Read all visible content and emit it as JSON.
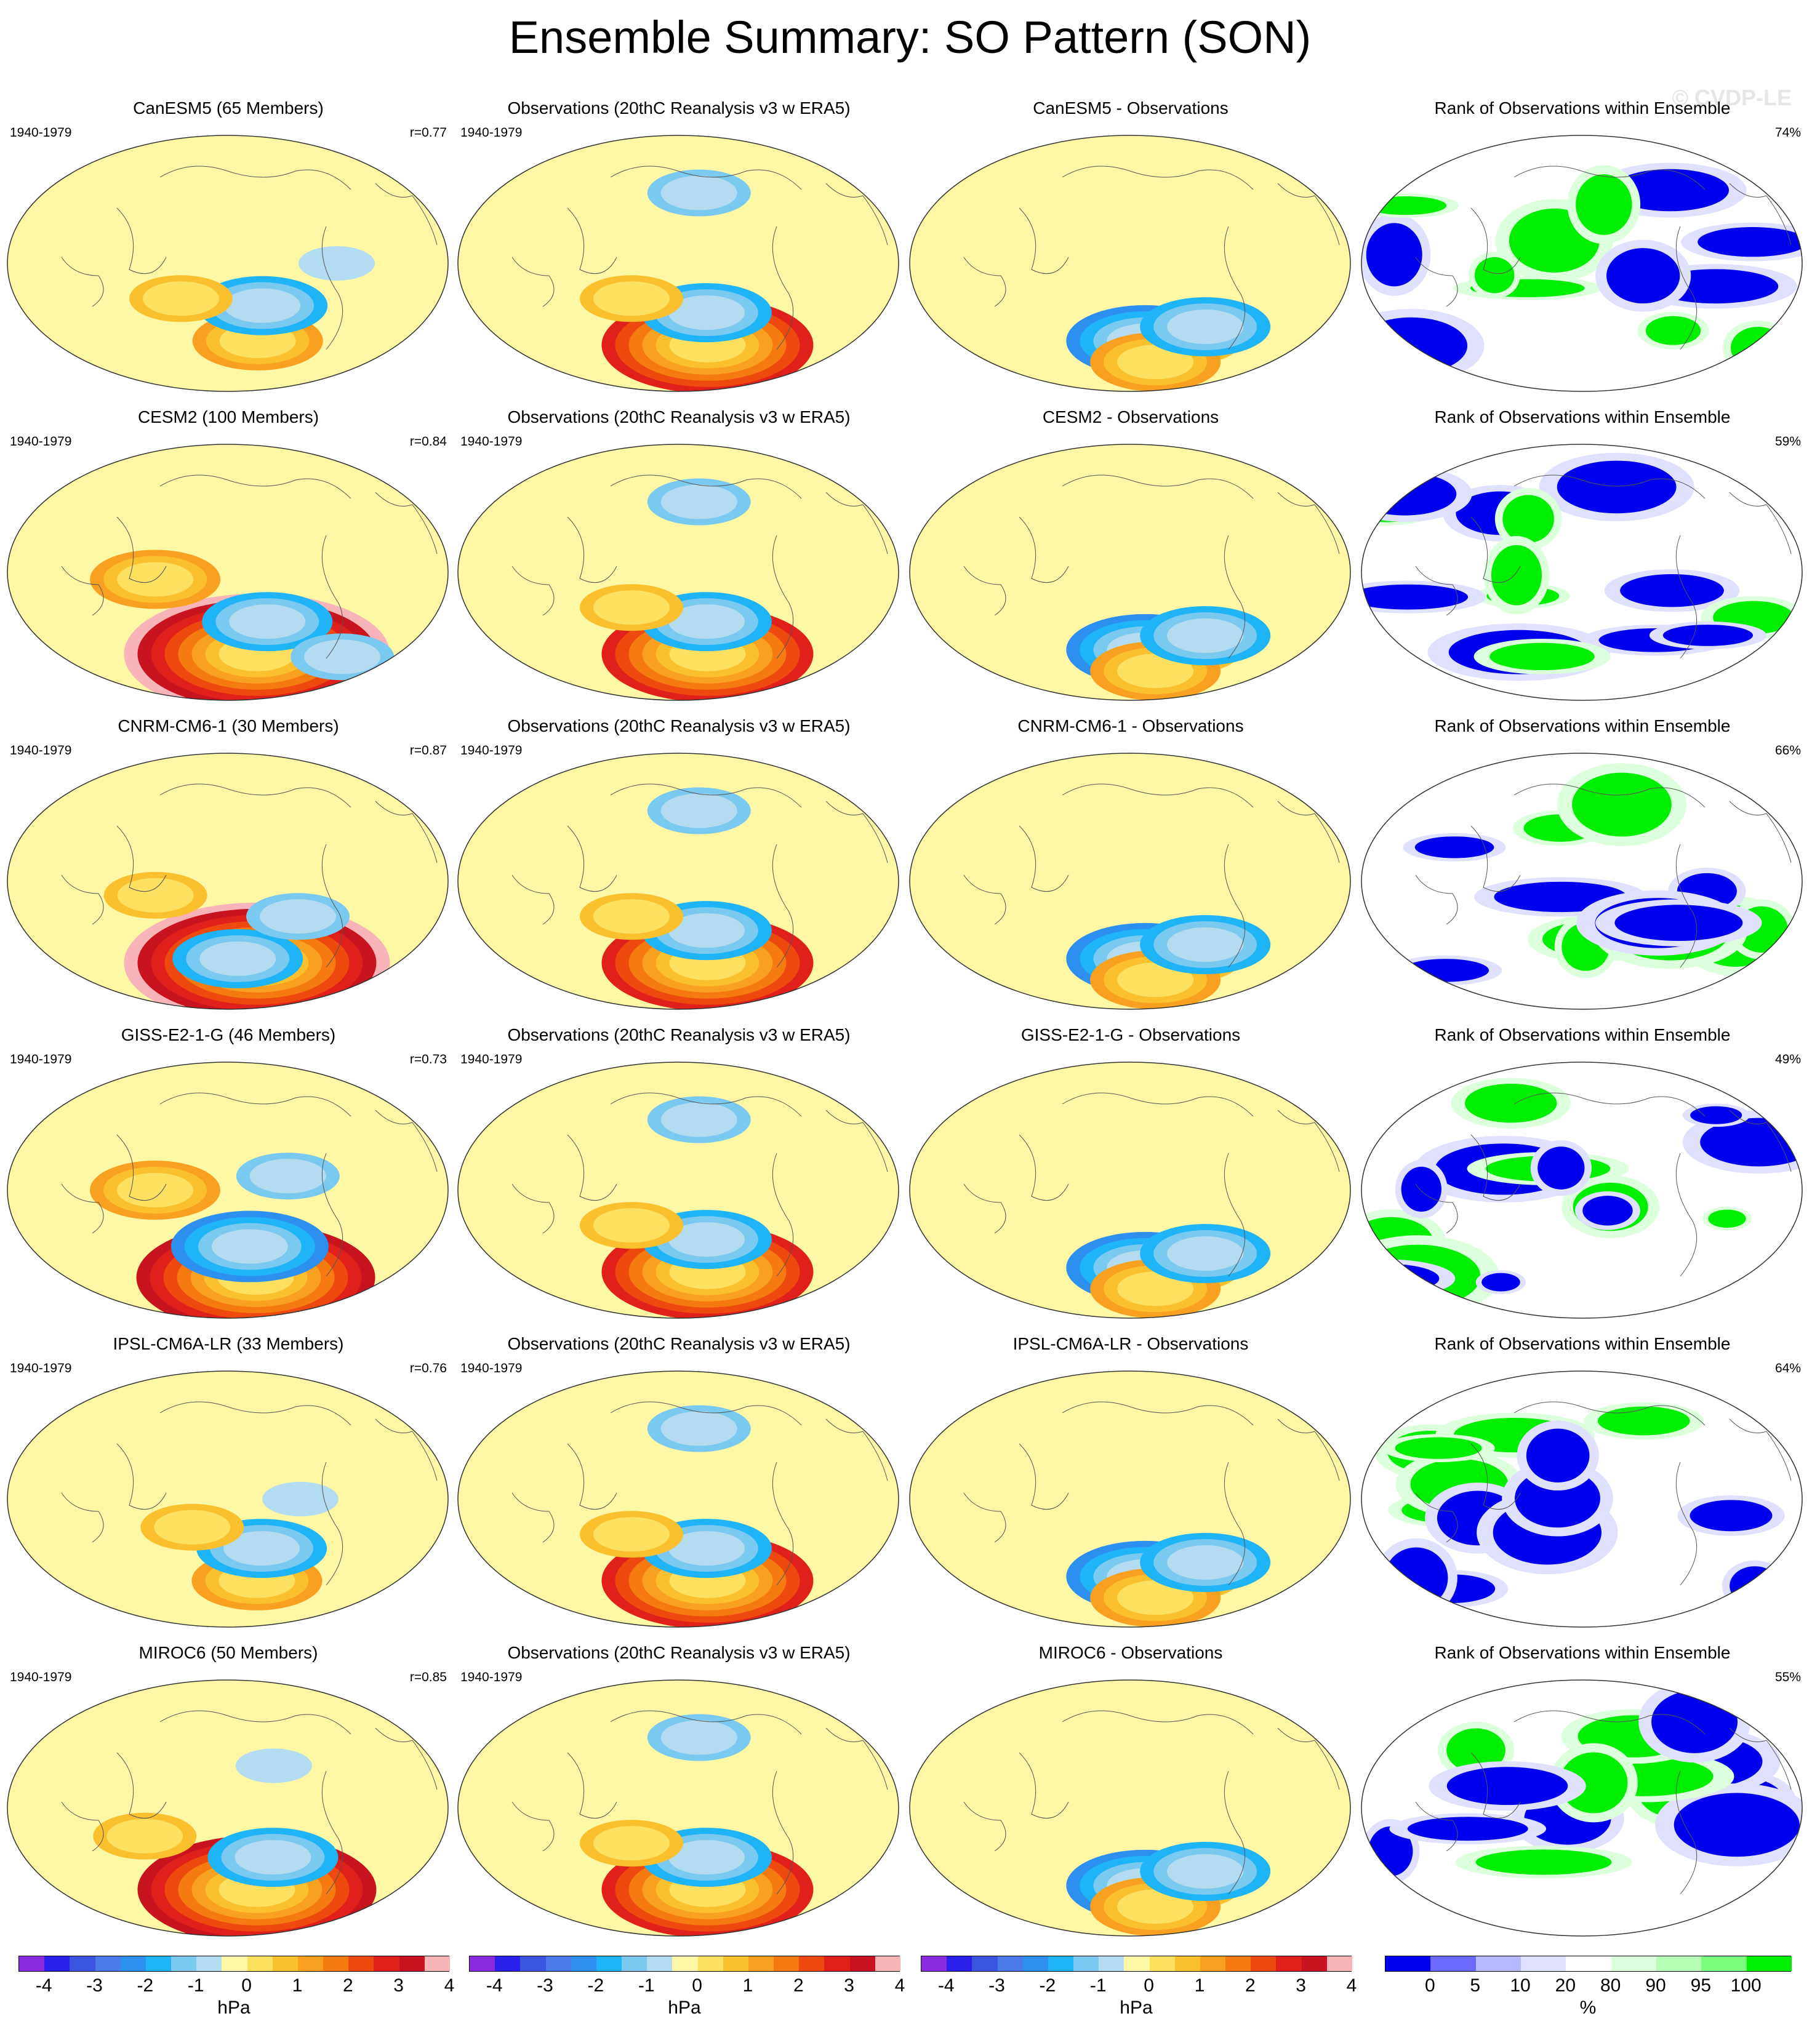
{
  "title": "Ensemble Summary: SO Pattern (SON)",
  "watermark": "© CVDP-LE",
  "colors": {
    "anomaly_scale": [
      "#8a2be2",
      "#2a20ea",
      "#3a55de",
      "#4a7be8",
      "#2d8ff0",
      "#1eb4f5",
      "#79c9f0",
      "#b4dcf0",
      "#fdf7a6",
      "#fde060",
      "#fbc02d",
      "#f8a020",
      "#f57a10",
      "#ee4a10",
      "#e0201a",
      "#c8141e",
      "#f8b4b8"
    ],
    "rank_scale": [
      "#0000ee",
      "#6a6aff",
      "#b8b8ff",
      "#e0e0ff",
      "#ffffff",
      "#ffffff",
      "#dcffdc",
      "#b4ffb4",
      "#7dff7d",
      "#00ee00"
    ],
    "ocean_neutral": "#fdf7a6",
    "neutral_blue": "#b4dcf0"
  },
  "rows": [
    {
      "model_title": "CanESM5 (65 Members)",
      "period": "1940-1979",
      "r": "r=0.77",
      "obs_title": "Observations (20thC Reanalysis v3 w ERA5)",
      "obs_period": "1940-1979",
      "diff_title": "CanESM5 - Observations",
      "rank_title": "Rank of Observations within Ensemble",
      "rank_pct": "74%"
    },
    {
      "model_title": "CESM2 (100 Members)",
      "period": "1940-1979",
      "r": "r=0.84",
      "obs_title": "Observations (20thC Reanalysis v3 w ERA5)",
      "obs_period": "1940-1979",
      "diff_title": "CESM2 - Observations",
      "rank_title": "Rank of Observations within Ensemble",
      "rank_pct": "59%"
    },
    {
      "model_title": "CNRM-CM6-1 (30 Members)",
      "period": "1940-1979",
      "r": "r=0.87",
      "obs_title": "Observations (20thC Reanalysis v3 w ERA5)",
      "obs_period": "1940-1979",
      "diff_title": "CNRM-CM6-1 - Observations",
      "rank_title": "Rank of Observations within Ensemble",
      "rank_pct": "66%"
    },
    {
      "model_title": "GISS-E2-1-G (46 Members)",
      "period": "1940-1979",
      "r": "r=0.73",
      "obs_title": "Observations (20thC Reanalysis v3 w ERA5)",
      "obs_period": "1940-1979",
      "diff_title": "GISS-E2-1-G - Observations",
      "rank_title": "Rank of Observations within Ensemble",
      "rank_pct": "49%"
    },
    {
      "model_title": "IPSL-CM6A-LR (33 Members)",
      "period": "1940-1979",
      "r": "r=0.76",
      "obs_title": "Observations (20thC Reanalysis v3 w ERA5)",
      "obs_period": "1940-1979",
      "diff_title": "IPSL-CM6A-LR - Observations",
      "rank_title": "Rank of Observations within Ensemble",
      "rank_pct": "64%"
    },
    {
      "model_title": "MIROC6 (50 Members)",
      "period": "1940-1979",
      "r": "r=0.85",
      "obs_title": "Observations (20thC Reanalysis v3 w ERA5)",
      "obs_period": "1940-1979",
      "diff_title": "MIROC6 - Observations",
      "rank_title": "Rank of Observations within Ensemble",
      "rank_pct": "55%"
    }
  ],
  "colorbars": {
    "anomaly": {
      "unit": "hPa",
      "ticks": [
        "-4",
        "-3",
        "-2",
        "-1",
        "0",
        "1",
        "2",
        "3",
        "4"
      ]
    },
    "rank": {
      "unit": "%",
      "ticks": [
        "0",
        "5",
        "10",
        "20",
        "80",
        "90",
        "95",
        "100"
      ]
    }
  },
  "chart_data": {
    "type": "heatmap",
    "title": "Ensemble Summary: SO Pattern (SON)",
    "projection": "global map (Robinson-like)",
    "columns": [
      "Model ensemble mean pattern",
      "Observations (20thC Reanalysis v3 w ERA5)",
      "Model - Observations",
      "Rank of Observations within Ensemble"
    ],
    "models": [
      "CanESM5",
      "CESM2",
      "CNRM-CM6-1",
      "GISS-E2-1-G",
      "IPSL-CM6A-LR",
      "MIROC6"
    ],
    "members": [
      65,
      100,
      30,
      46,
      33,
      50
    ],
    "pattern_correlation": [
      0.77,
      0.84,
      0.87,
      0.73,
      0.76,
      0.85
    ],
    "rank_area_percent": [
      74,
      59,
      66,
      49,
      64,
      55
    ],
    "anomaly_levels_hPa": [
      -4,
      -3.5,
      -3,
      -2.5,
      -2,
      -1.5,
      -1,
      -0.5,
      0,
      0.5,
      1,
      1.5,
      2,
      2.5,
      3,
      3.5,
      4
    ],
    "rank_levels_percent": [
      0,
      5,
      10,
      20,
      80,
      90,
      95,
      100
    ],
    "features": {
      "model": [
        {
          "lon": -150,
          "lat": -55,
          "value": 1.5
        },
        {
          "lon": -150,
          "lat": -30,
          "value": -1.5
        },
        {
          "lon": 140,
          "lat": -25,
          "value": 0.8
        },
        {
          "lon": -90,
          "lat": 0,
          "value": -0.4
        },
        {
          "lon": -150,
          "lat": -58,
          "value": 4.0
        },
        {
          "lon": -145,
          "lat": -35,
          "value": -1.6
        },
        {
          "lon": 120,
          "lat": -5,
          "value": 1.3
        },
        {
          "lon": -60,
          "lat": -60,
          "value": -1.2
        },
        {
          "lon": -150,
          "lat": -58,
          "value": 3.8
        },
        {
          "lon": -170,
          "lat": -55,
          "value": -1.4
        },
        {
          "lon": 120,
          "lat": -10,
          "value": 1.2
        },
        {
          "lon": -120,
          "lat": -25,
          "value": -1.0
        },
        {
          "lon": -150,
          "lat": -62,
          "value": 3.5
        },
        {
          "lon": -160,
          "lat": -40,
          "value": -1.8
        },
        {
          "lon": 120,
          "lat": 0,
          "value": 1.4
        },
        {
          "lon": -130,
          "lat": 10,
          "value": -0.8
        },
        {
          "lon": -150,
          "lat": -58,
          "value": 1.6
        },
        {
          "lon": -150,
          "lat": -35,
          "value": -1.5
        },
        {
          "lon": 150,
          "lat": -20,
          "value": 0.8
        },
        {
          "lon": -120,
          "lat": 0,
          "value": -0.5
        },
        {
          "lon": -150,
          "lat": -58,
          "value": 3.6
        },
        {
          "lon": -140,
          "lat": -35,
          "value": -1.3
        },
        {
          "lon": 110,
          "lat": -20,
          "value": 1.2
        },
        {
          "lon": -140,
          "lat": 30,
          "value": -0.6
        }
      ],
      "observations": [
        {
          "lon": -150,
          "lat": -58,
          "value": 3.2
        },
        {
          "lon": -155,
          "lat": -35,
          "value": -1.4
        },
        {
          "lon": 140,
          "lat": -25,
          "value": 1.0
        },
        {
          "lon": -160,
          "lat": 50,
          "value": -1.2
        }
      ],
      "difference": [
        {
          "lon": -165,
          "lat": -55,
          "value": -2.0
        },
        {
          "lon": -120,
          "lat": -55,
          "value": 1.2
        },
        {
          "lon": -150,
          "lat": -70,
          "value": 1.4
        },
        {
          "lon": -110,
          "lat": -45,
          "value": -1.6
        }
      ]
    }
  }
}
